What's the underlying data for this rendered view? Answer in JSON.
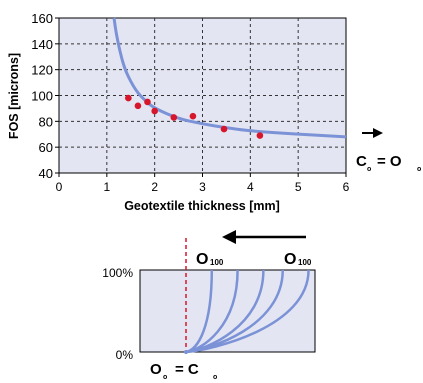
{
  "chart_data": [
    {
      "type": "scatter",
      "xlabel": "Geotextile thickness [mm]",
      "ylabel": "FOS [microns]",
      "xlim": [
        0,
        6
      ],
      "ylim": [
        40,
        160
      ],
      "xticks": [
        "0",
        "1",
        "2",
        "3",
        "4",
        "5",
        "6"
      ],
      "yticks": [
        "40",
        "60",
        "80",
        "100",
        "120",
        "140",
        "160"
      ],
      "grid": true,
      "points": [
        {
          "x": 1.45,
          "y": 98
        },
        {
          "x": 1.65,
          "y": 92
        },
        {
          "x": 1.85,
          "y": 95
        },
        {
          "x": 2.0,
          "y": 88
        },
        {
          "x": 2.4,
          "y": 83
        },
        {
          "x": 2.8,
          "y": 84
        },
        {
          "x": 3.45,
          "y": 74
        },
        {
          "x": 4.2,
          "y": 69
        }
      ],
      "fit_curve": [
        {
          "x": 1.15,
          "y": 160
        },
        {
          "x": 1.2,
          "y": 147
        },
        {
          "x": 1.3,
          "y": 130
        },
        {
          "x": 1.4,
          "y": 118
        },
        {
          "x": 1.6,
          "y": 104
        },
        {
          "x": 1.8,
          "y": 96
        },
        {
          "x": 2.0,
          "y": 90
        },
        {
          "x": 2.5,
          "y": 82
        },
        {
          "x": 3.0,
          "y": 78
        },
        {
          "x": 3.5,
          "y": 75
        },
        {
          "x": 4.0,
          "y": 72.5
        },
        {
          "x": 5.0,
          "y": 70
        },
        {
          "x": 6.0,
          "y": 68
        }
      ],
      "annotation": {
        "c_letter": "C",
        "c_sub": "o",
        "equals": "= O",
        "o_sub": "o"
      },
      "colors": {
        "plot_bg": "#e4e5f3",
        "curve": "#7b93d6",
        "points": "#d7162b",
        "grid": "#333333"
      }
    },
    {
      "type": "line",
      "yticks": [
        "100%",
        "0%"
      ],
      "labels": {
        "o100_letter": "O",
        "o100_sub": "100"
      },
      "origin_label": {
        "o_letter": "O",
        "o_sub": "o",
        "equals": "= C",
        "c_sub": "o"
      },
      "curve_ends": [
        0.2,
        0.4,
        0.6,
        0.75,
        0.95
      ],
      "colors": {
        "plot_bg": "#e4e5f3",
        "curve": "#7b93d6",
        "dashed_line": "#d7162b",
        "arrow": "#000000"
      }
    }
  ]
}
